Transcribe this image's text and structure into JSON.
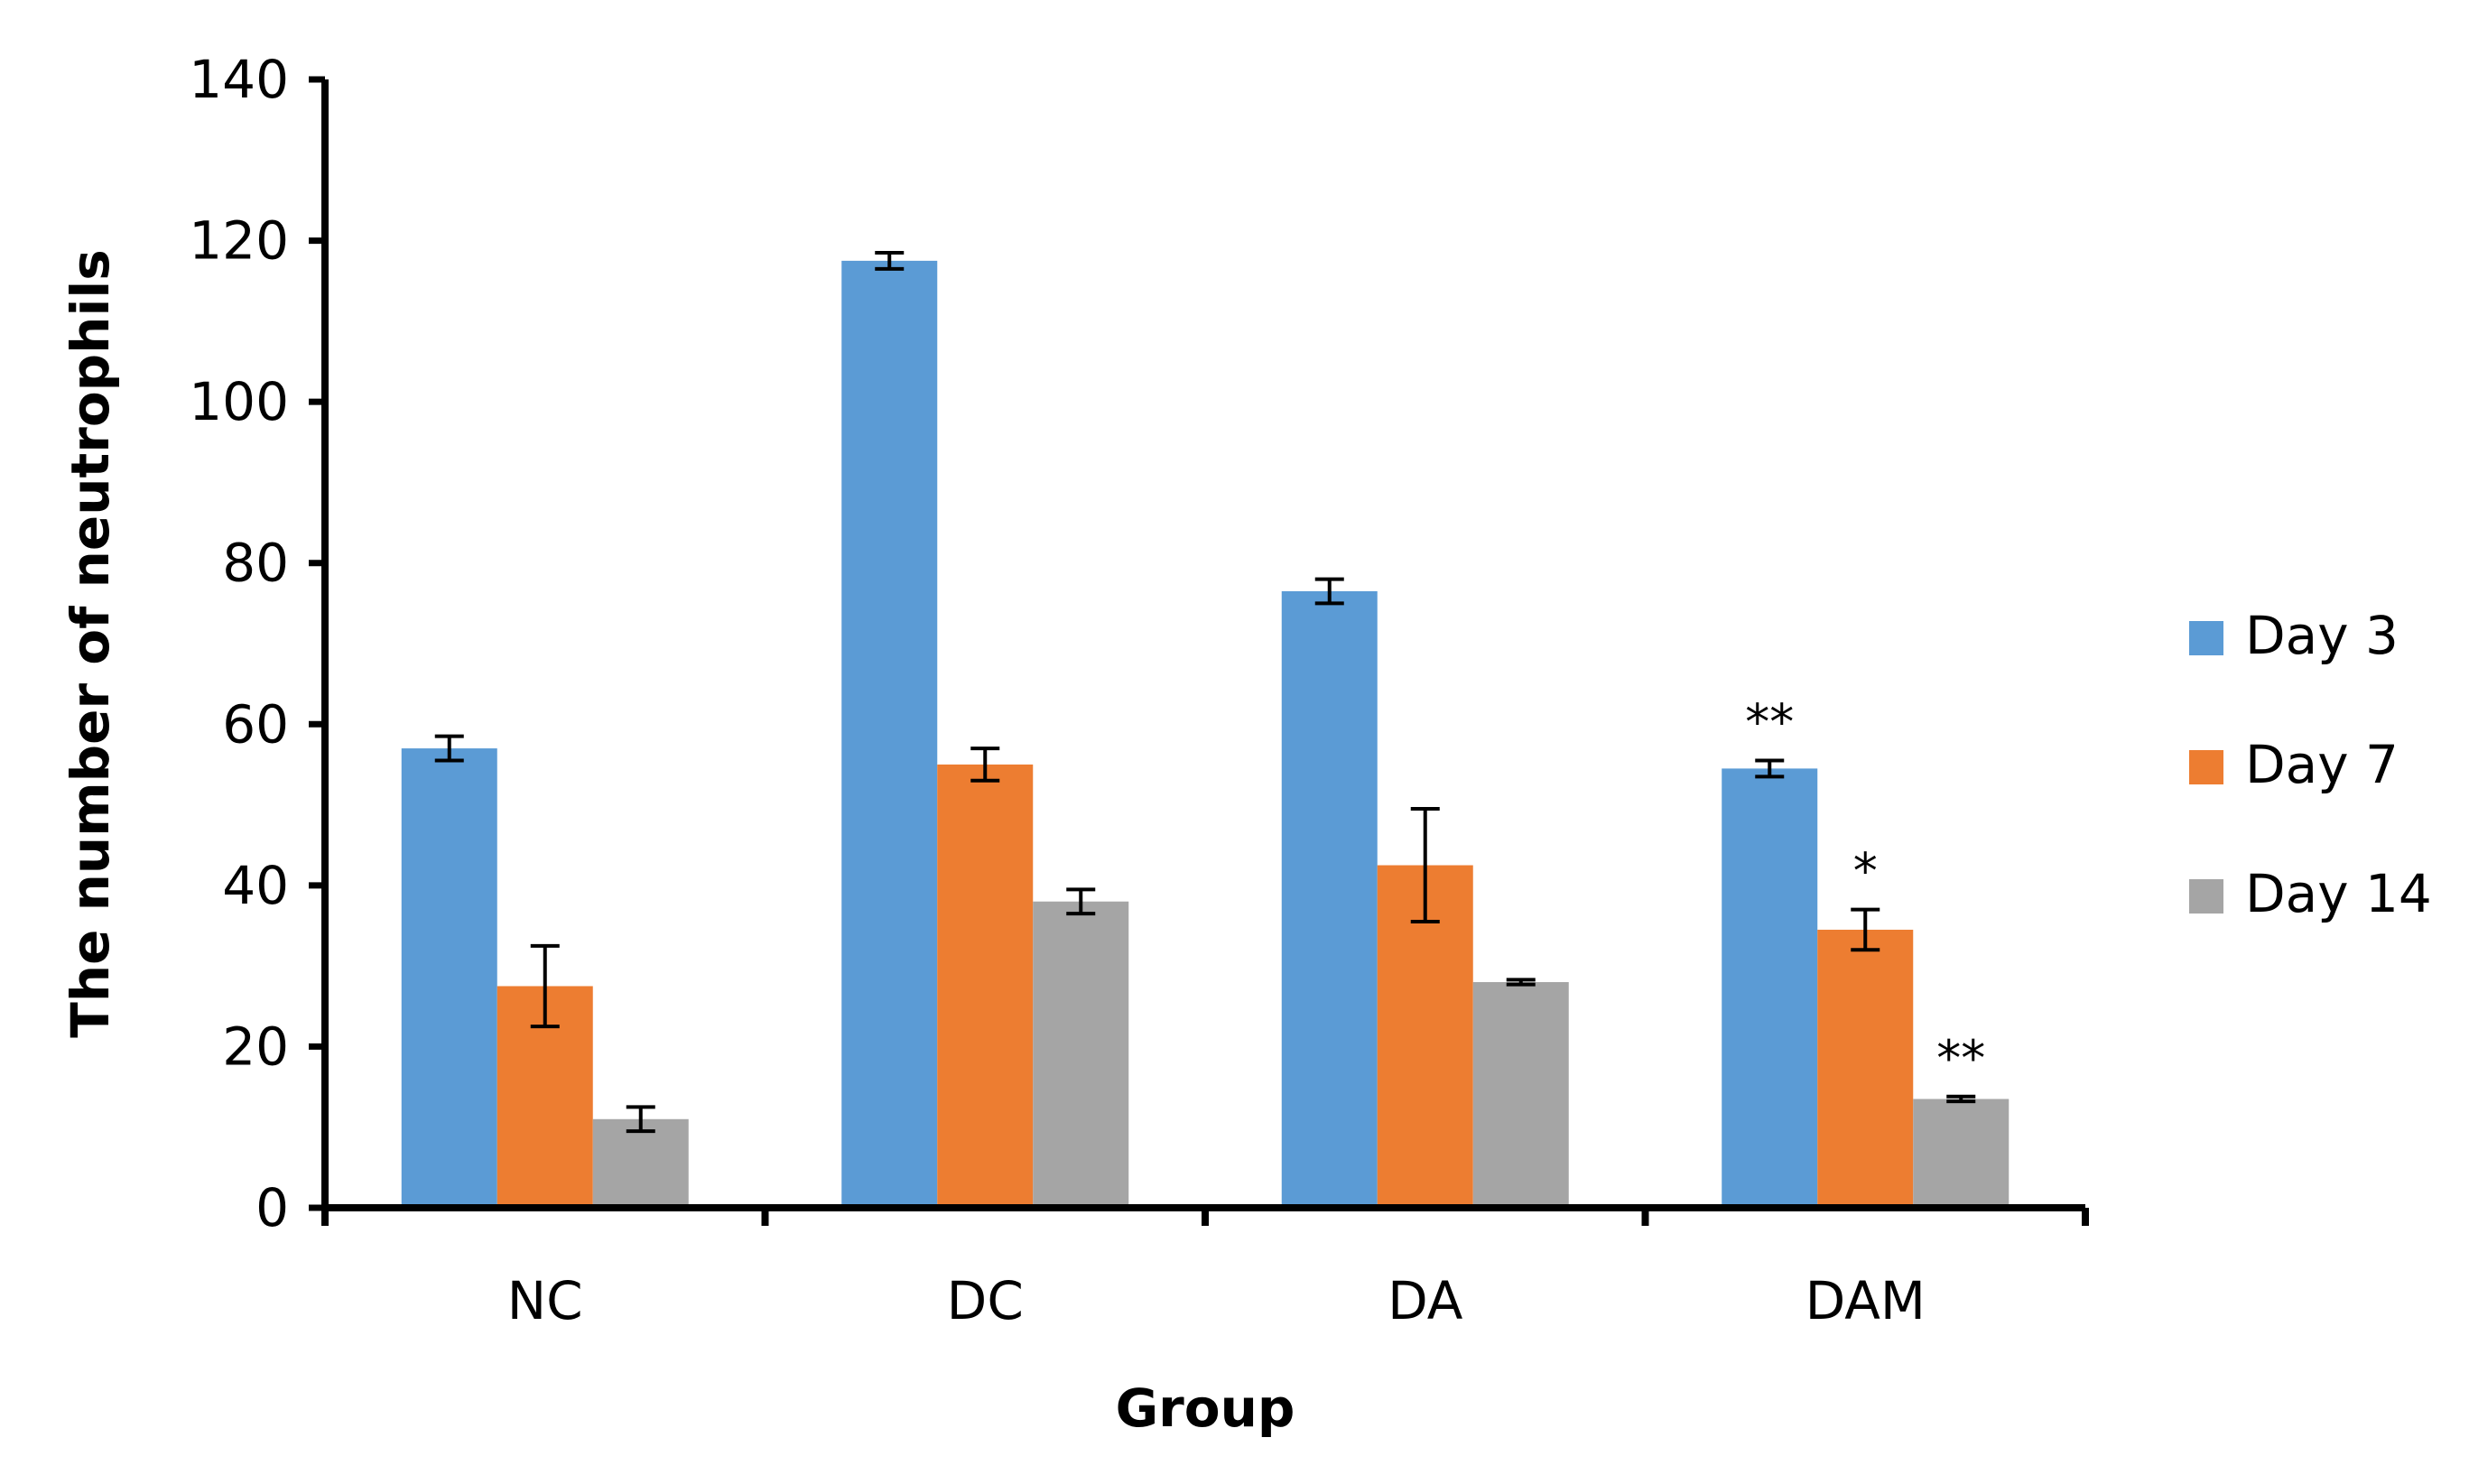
{
  "chart_data": {
    "type": "bar",
    "title": "",
    "xlabel": "Group",
    "ylabel": "The number of neutrophils",
    "ylim": [
      0,
      140
    ],
    "yticks": [
      0,
      20,
      40,
      60,
      80,
      100,
      120,
      140
    ],
    "grid": false,
    "legend_position": "right",
    "categories": [
      "NC",
      "DC",
      "DA",
      "DAM"
    ],
    "series": [
      {
        "name": "Day 3",
        "color": "#5B9BD5",
        "values": [
          57,
          117.5,
          76.5,
          54.5
        ],
        "errors": [
          1.5,
          1,
          1.5,
          1
        ],
        "annotations": [
          "",
          "",
          "",
          "**"
        ]
      },
      {
        "name": "Day 7",
        "color": "#ED7D31",
        "values": [
          27.5,
          55,
          42.5,
          34.5
        ],
        "errors": [
          5,
          2,
          7,
          2.5
        ],
        "annotations": [
          "",
          "",
          "",
          "*"
        ]
      },
      {
        "name": "Day 14",
        "color": "#A5A5A5",
        "values": [
          11,
          38,
          28,
          13.5
        ],
        "errors": [
          1.5,
          1.5,
          0.3,
          0.3
        ],
        "annotations": [
          "",
          "",
          "",
          "**"
        ]
      }
    ]
  }
}
